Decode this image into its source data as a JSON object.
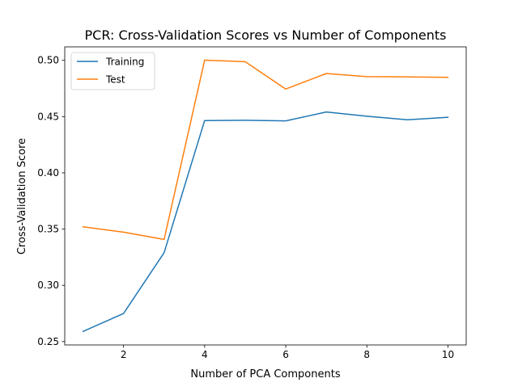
{
  "chart_data": {
    "type": "line",
    "title": "PCR: Cross-Validation Scores vs Number of Components",
    "xlabel": "Number of PCA Components",
    "ylabel": "Cross-Validation Score",
    "x": [
      1,
      2,
      3,
      4,
      5,
      6,
      7,
      8,
      9,
      10
    ],
    "xlim": [
      0.55,
      10.45
    ],
    "ylim": [
      0.247,
      0.512
    ],
    "xticks": [
      2,
      4,
      6,
      8,
      10
    ],
    "xtick_labels": [
      "2",
      "4",
      "6",
      "8",
      "10"
    ],
    "yticks": [
      0.25,
      0.3,
      0.35,
      0.4,
      0.45,
      0.5
    ],
    "ytick_labels": [
      "0.25",
      "0.30",
      "0.35",
      "0.40",
      "0.45",
      "0.50"
    ],
    "grid": false,
    "legend_position": "top-left",
    "series": [
      {
        "name": "Training",
        "color": "#1f77b4",
        "values": [
          0.259,
          0.275,
          0.329,
          0.4465,
          0.4467,
          0.4462,
          0.4541,
          0.4503,
          0.4472,
          0.4494
        ]
      },
      {
        "name": "Test",
        "color": "#ff7f0e",
        "values": [
          0.352,
          0.3473,
          0.3408,
          0.5002,
          0.4988,
          0.4745,
          0.4883,
          0.4855,
          0.4853,
          0.4849
        ]
      }
    ]
  }
}
